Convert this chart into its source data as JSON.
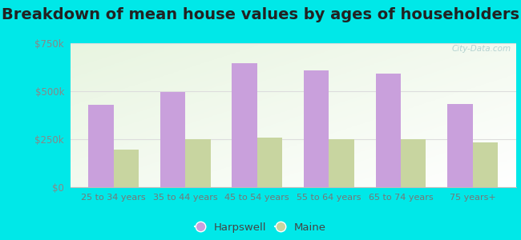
{
  "title": "Breakdown of mean house values by ages of householders",
  "categories": [
    "25 to 34 years",
    "35 to 44 years",
    "45 to 54 years",
    "55 to 64 years",
    "65 to 74 years",
    "75 years+"
  ],
  "harpswell_values": [
    430000,
    497000,
    645000,
    610000,
    590000,
    432000
  ],
  "maine_values": [
    195000,
    252000,
    258000,
    252000,
    252000,
    235000
  ],
  "harpswell_color": "#c9a0dc",
  "maine_color": "#c8d5a0",
  "ylim": [
    0,
    750000
  ],
  "yticks": [
    0,
    250000,
    500000,
    750000
  ],
  "ytick_labels": [
    "$0",
    "$250k",
    "$500k",
    "$750k"
  ],
  "background_color": "#00e8e8",
  "title_fontsize": 14,
  "legend_labels": [
    "Harpswell",
    "Maine"
  ],
  "bar_width": 0.35,
  "watermark": "City-Data.com"
}
